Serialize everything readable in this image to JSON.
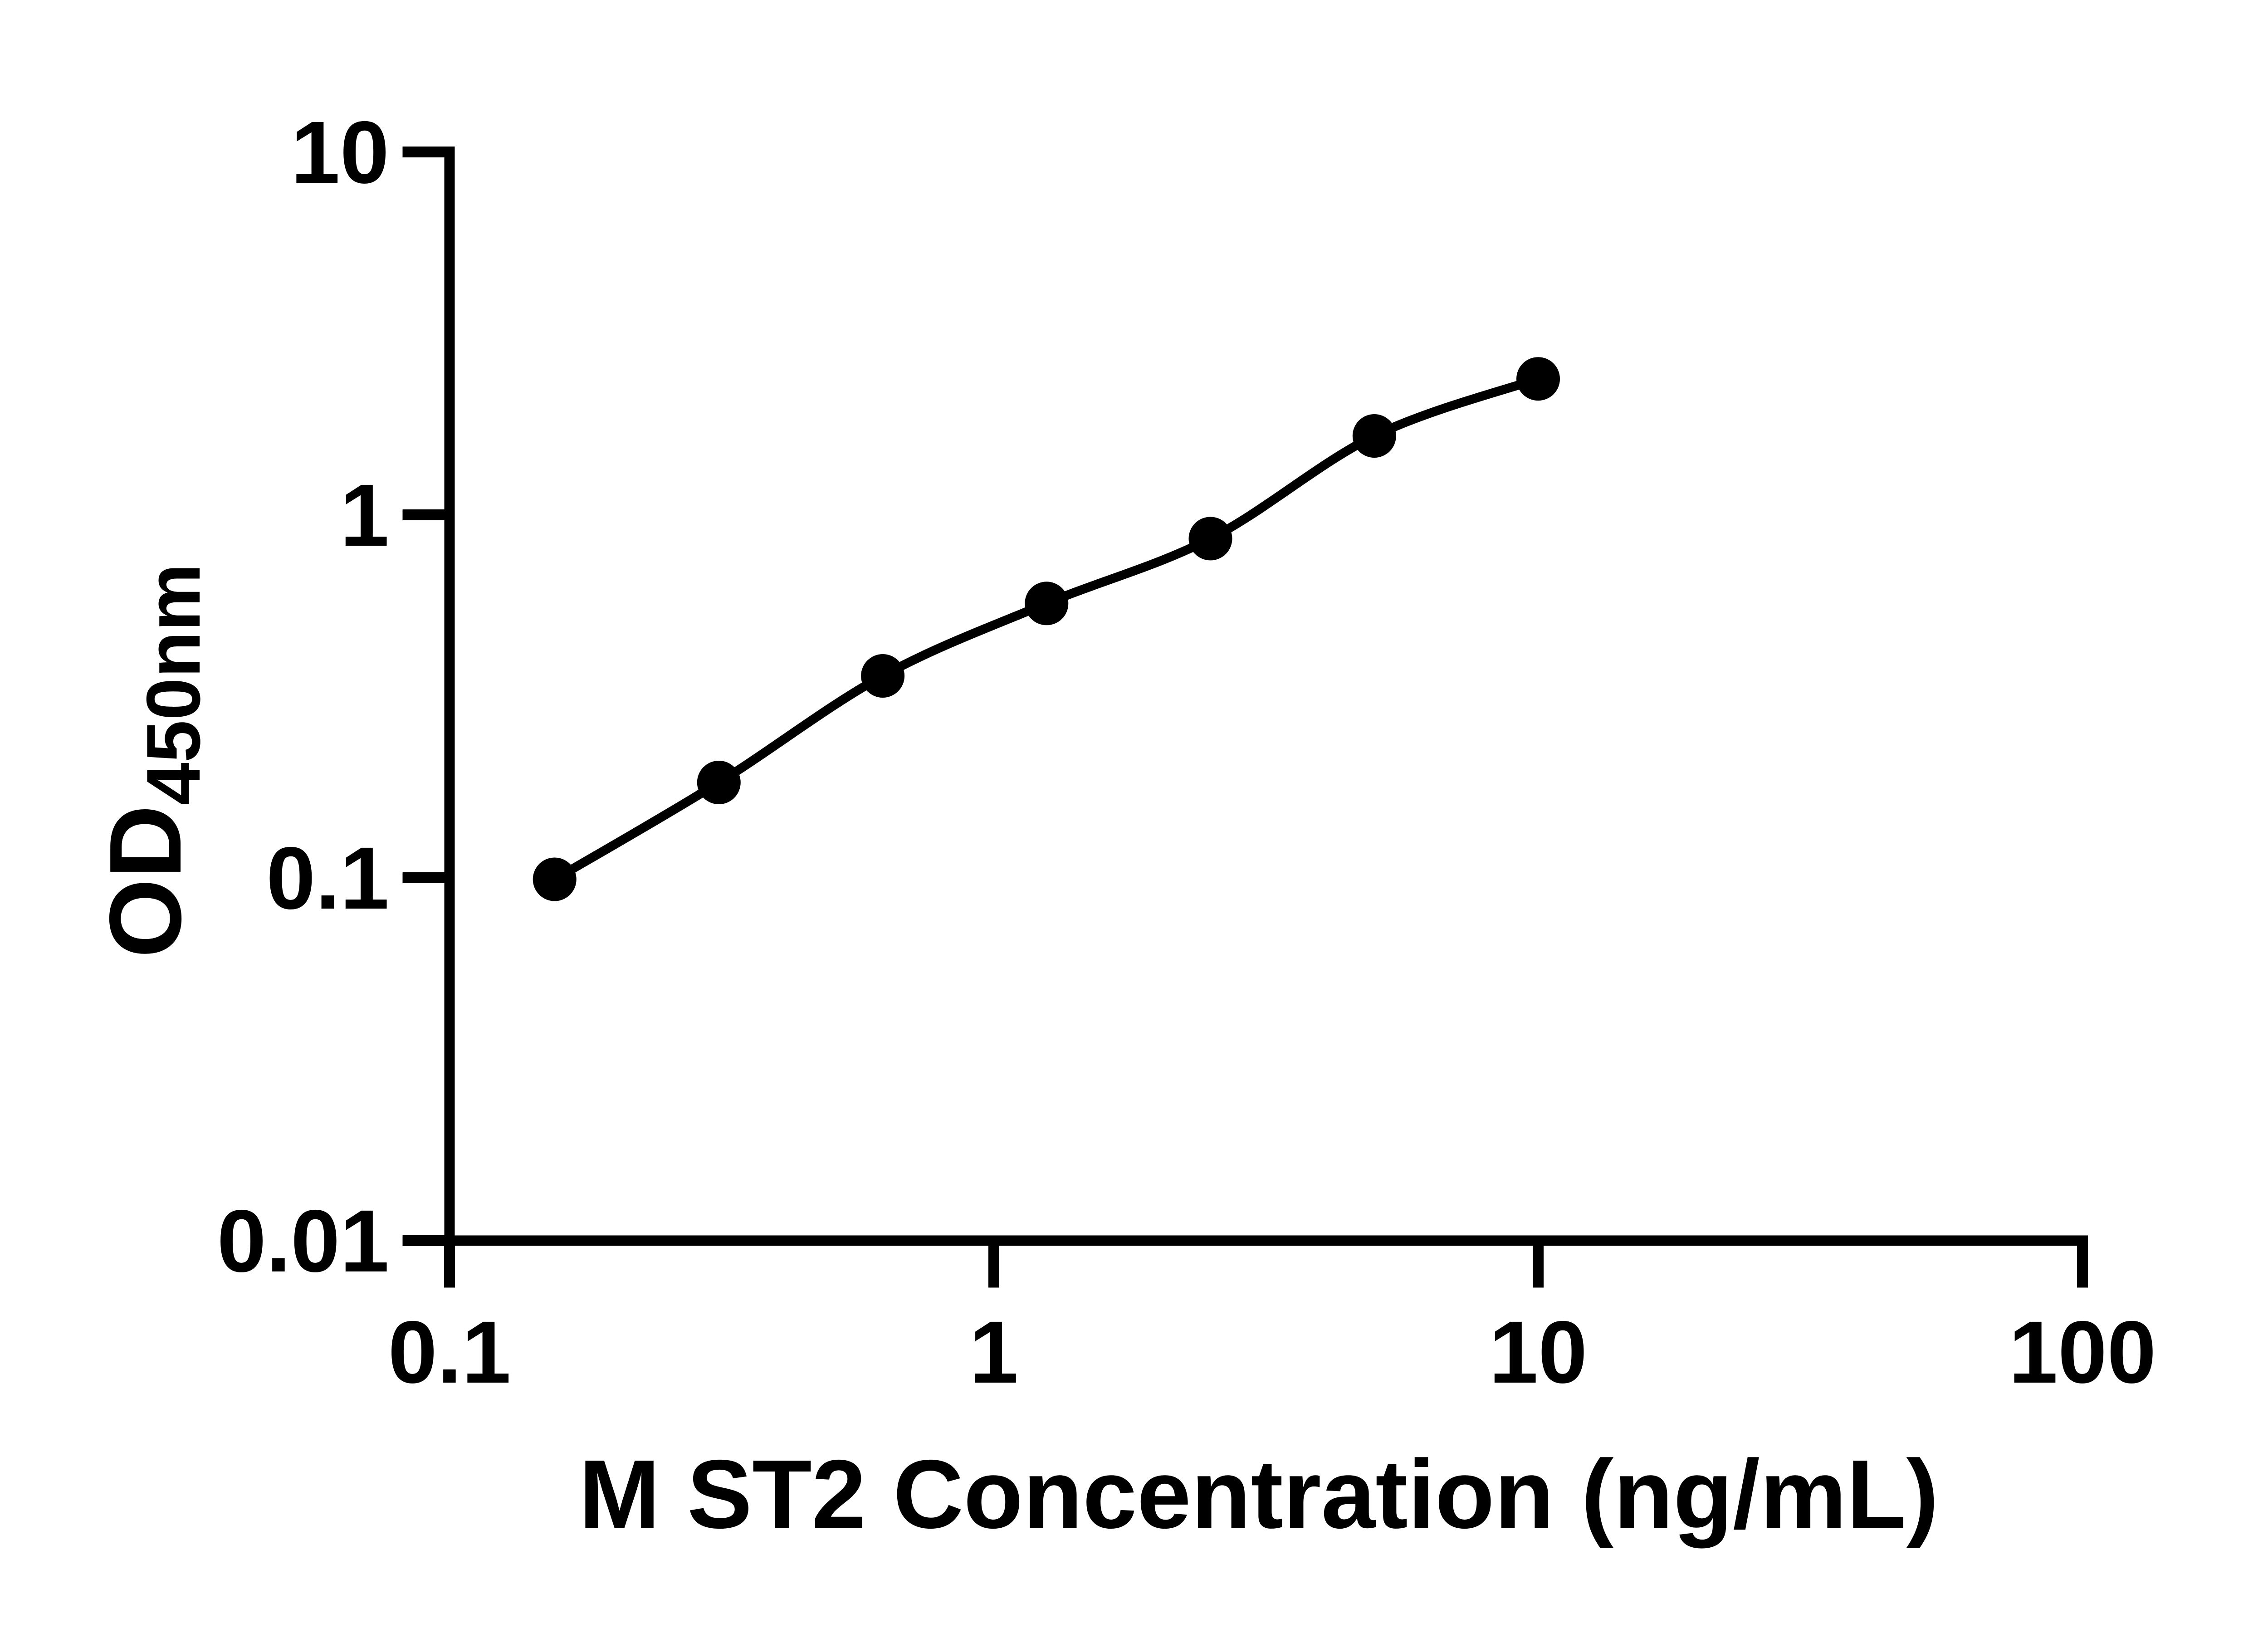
{
  "figure": {
    "background_color": "#ffffff",
    "ink_color": "#000000"
  },
  "chart_data": {
    "type": "scatter",
    "subtype": "log-log standard curve with fitted line",
    "title": "",
    "xlabel": "M ST2 Concentration (ng/mL)",
    "ylabel_main": "OD",
    "ylabel_sub": "450nm",
    "x_scale": "log10",
    "y_scale": "log10",
    "xlim": [
      0.1,
      100
    ],
    "ylim": [
      0.01,
      10
    ],
    "grid": false,
    "legend": "none",
    "marker": "filled-circle",
    "marker_color": "#000000",
    "line_color": "#000000",
    "x_ticks": [
      {
        "value": 0.1,
        "label": "0.1"
      },
      {
        "value": 1,
        "label": "1"
      },
      {
        "value": 10,
        "label": "10"
      },
      {
        "value": 100,
        "label": "100"
      }
    ],
    "y_ticks": [
      {
        "value": 10,
        "label": "10"
      },
      {
        "value": 1,
        "label": "1"
      },
      {
        "value": 0.1,
        "label": "0.1"
      },
      {
        "value": 0.01,
        "label": "0.01"
      }
    ],
    "series": [
      {
        "points": [
          {
            "x": 0.156,
            "y": 0.099
          },
          {
            "x": 0.3125,
            "y": 0.183
          },
          {
            "x": 0.625,
            "y": 0.36
          },
          {
            "x": 1.25,
            "y": 0.57
          },
          {
            "x": 2.5,
            "y": 0.86
          },
          {
            "x": 5,
            "y": 1.65
          },
          {
            "x": 10,
            "y": 2.37
          }
        ],
        "fit_line": true
      }
    ]
  }
}
